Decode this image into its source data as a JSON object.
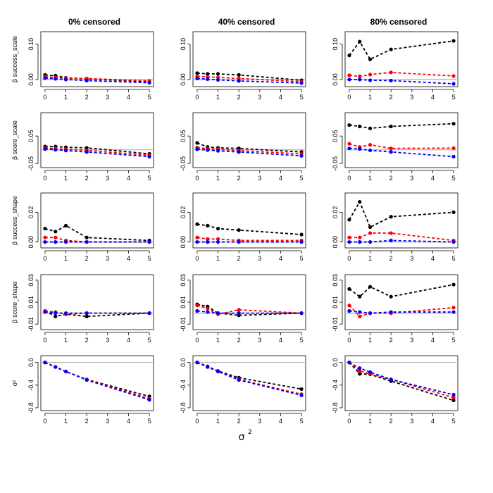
{
  "figure": {
    "columns": [
      "0% censored",
      "40% censored",
      "80% censored"
    ],
    "x_label": "σ",
    "x_label_sup": "2",
    "series_colors": {
      "black": "#000000",
      "red": "#ff0000",
      "blue": "#0000ff",
      "reference": "#bebebe"
    }
  },
  "chart_data": [
    {
      "type": "line",
      "rows": [
        {
          "ylabel": "β success_scale",
          "yticks": [
            "0.00",
            "0.10"
          ],
          "yticks_values": [
            0.0,
            0.1
          ],
          "ylim": [
            -0.02,
            0.135
          ]
        },
        {
          "ylabel": "β score_scale",
          "yticks": [
            "-0.05",
            "0.05"
          ],
          "yticks_values": [
            -0.05,
            0.05
          ],
          "ylim": [
            -0.065,
            0.135
          ]
        },
        {
          "ylabel": "β success_shape",
          "yticks": [
            "0.00",
            "0.02"
          ],
          "yticks_values": [
            0.0,
            0.02
          ],
          "ylim": [
            -0.004,
            0.033
          ]
        },
        {
          "ylabel": "β score_shape",
          "yticks": [
            "-0.01",
            "0.01",
            "0.03"
          ],
          "yticks_values": [
            -0.01,
            0.01,
            0.03
          ],
          "ylim": [
            -0.015,
            0.035
          ]
        },
        {
          "ylabel": "σ²",
          "yticks": [
            "-0.8",
            "-0.4",
            "0.0"
          ],
          "yticks_values": [
            -0.8,
            -0.4,
            0.0
          ],
          "ylim": [
            -0.85,
            0.12
          ]
        }
      ],
      "x": [
        0,
        0.5,
        1,
        2,
        5
      ],
      "xticks": [
        "0",
        "1",
        "2",
        "3",
        "4",
        "5"
      ],
      "xticks_values": [
        0,
        1,
        2,
        3,
        4,
        5
      ],
      "xlim": [
        -0.2,
        5.2
      ],
      "reference_line": 0,
      "panels": [
        [
          {
            "black": [
              0.013,
              0.011,
              0.005,
              0.002,
              -0.006
            ],
            "red": [
              0.008,
              0.006,
              0.004,
              0.003,
              -0.004
            ],
            "blue": [
              0.004,
              0.002,
              0.0,
              -0.003,
              -0.009
            ]
          },
          {
            "black": [
              0.012,
              0.012,
              0.009,
              0.007,
              -0.015
            ],
            "red": [
              0.007,
              0.004,
              0.002,
              -0.002,
              -0.02
            ],
            "blue": [
              0.003,
              0.0,
              -0.003,
              -0.008,
              -0.025
            ]
          },
          {
            "black": [
              0.009,
              0.007,
              0.011,
              0.003,
              0.001
            ],
            "red": [
              0.003,
              0.003,
              0.001,
              0.0,
              0.0
            ],
            "blue": [
              0.0,
              0.0,
              0.0,
              0.0,
              0.0
            ]
          },
          {
            "black": [
              0.002,
              -0.003,
              -0.001,
              -0.003,
              0.0
            ],
            "red": [
              0.002,
              0.001,
              -0.001,
              0.0,
              0.0
            ],
            "blue": [
              0.001,
              0.0,
              0.0,
              0.0,
              0.0
            ]
          },
          {
            "black": [
              0.0,
              -0.08,
              -0.16,
              -0.3,
              -0.6
            ],
            "red": [
              0.0,
              -0.08,
              -0.16,
              -0.3,
              -0.64
            ],
            "blue": [
              0.0,
              -0.08,
              -0.16,
              -0.31,
              -0.66
            ]
          }
        ],
        [
          {
            "black": [
              0.018,
              0.016,
              0.016,
              0.013,
              -0.002
            ],
            "red": [
              0.009,
              0.007,
              0.006,
              0.003,
              -0.006
            ],
            "blue": [
              0.003,
              0.001,
              -0.001,
              -0.004,
              -0.01
            ]
          },
          {
            "black": [
              0.025,
              0.01,
              0.007,
              0.005,
              -0.008
            ],
            "red": [
              0.008,
              0.004,
              0.002,
              -0.003,
              -0.015
            ],
            "blue": [
              0.002,
              -0.001,
              -0.004,
              -0.008,
              -0.022
            ]
          },
          {
            "black": [
              0.012,
              0.011,
              0.009,
              0.008,
              0.005
            ],
            "red": [
              0.003,
              0.002,
              0.002,
              0.001,
              0.001
            ],
            "blue": [
              0.0,
              0.0,
              0.0,
              0.0,
              0.0
            ]
          },
          {
            "black": [
              0.008,
              0.006,
              0.0,
              -0.002,
              0.0
            ],
            "red": [
              0.007,
              0.004,
              -0.001,
              0.003,
              0.0
            ],
            "blue": [
              0.002,
              0.001,
              0.0,
              0.0,
              0.0
            ]
          },
          {
            "black": [
              0.0,
              -0.07,
              -0.15,
              -0.27,
              -0.47
            ],
            "red": [
              0.0,
              -0.08,
              -0.16,
              -0.3,
              -0.56
            ],
            "blue": [
              0.0,
              -0.08,
              -0.16,
              -0.31,
              -0.58
            ]
          }
        ],
        [
          {
            "black": [
              0.068,
              0.107,
              0.057,
              0.085,
              0.109
            ],
            "red": [
              0.012,
              0.009,
              0.014,
              0.02,
              0.01
            ],
            "blue": [
              0.0,
              0.0,
              -0.002,
              -0.003,
              -0.012
            ]
          },
          {
            "black": [
              0.09,
              0.085,
              0.078,
              0.085,
              0.095
            ],
            "red": [
              0.022,
              0.01,
              0.018,
              0.005,
              0.006
            ],
            "blue": [
              0.005,
              0.003,
              -0.002,
              -0.008,
              -0.025
            ]
          },
          {
            "black": [
              0.015,
              0.027,
              0.01,
              0.017,
              0.02
            ],
            "red": [
              0.003,
              0.003,
              0.006,
              0.006,
              0.001
            ],
            "blue": [
              0.0,
              0.0,
              0.0,
              0.001,
              0.0
            ]
          },
          {
            "black": [
              0.022,
              0.015,
              0.024,
              0.015,
              0.026
            ],
            "red": [
              0.007,
              -0.003,
              0.0,
              0.0,
              0.005
            ],
            "blue": [
              0.002,
              0.001,
              0.0,
              0.001,
              0.001
            ]
          },
          {
            "black": [
              0.0,
              -0.2,
              -0.21,
              -0.33,
              -0.67
            ],
            "red": [
              0.0,
              -0.15,
              -0.2,
              -0.3,
              -0.62
            ],
            "blue": [
              0.0,
              -0.1,
              -0.17,
              -0.3,
              -0.57
            ]
          }
        ]
      ]
    }
  ]
}
